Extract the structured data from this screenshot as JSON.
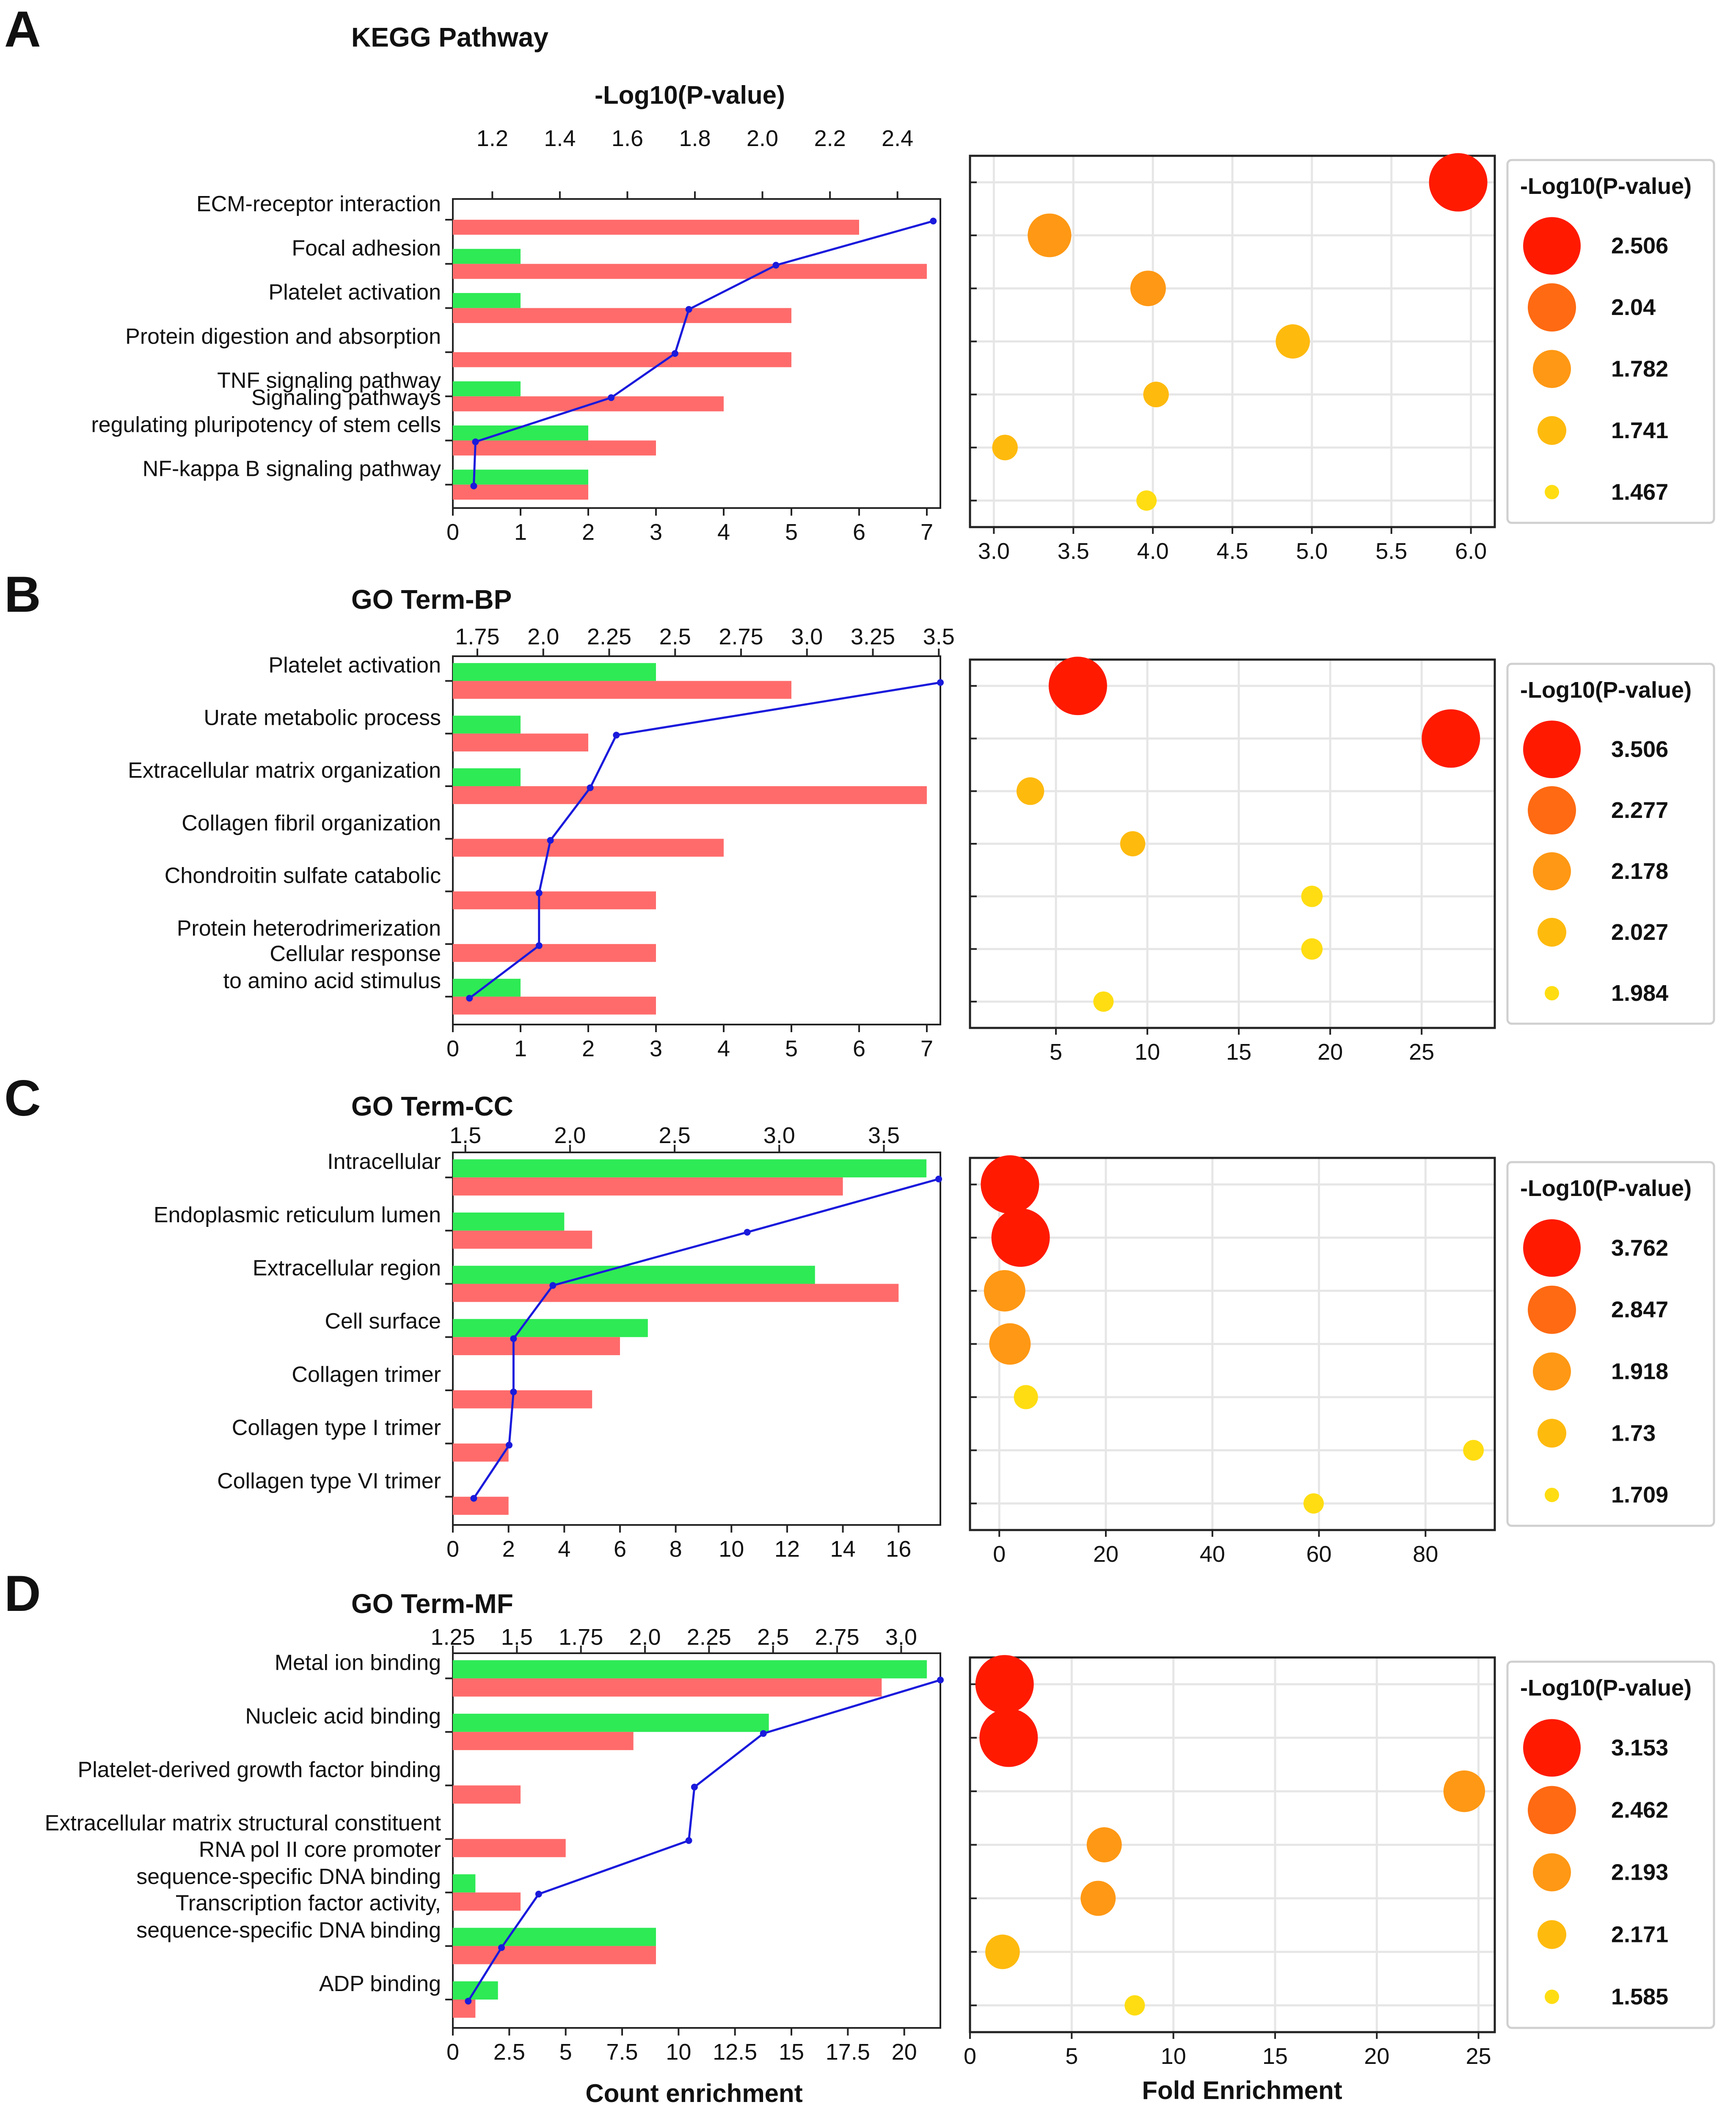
{
  "figure": {
    "x_label_bar": "Count enrichment",
    "x_label_bubble": "Fold Enrichment",
    "colors": {
      "bar_red": "#ff6b6b",
      "bar_green": "#2eea55",
      "line": "#1a1adc",
      "bubble_scale": [
        "#ff1a00",
        "#ff6a12",
        "#ff9814",
        "#ffba0e",
        "#ffdd12"
      ]
    }
  },
  "chart_data": [
    {
      "panel": "A",
      "type": "bar",
      "title": "KEGG Pathway",
      "top_axis_label": "-Log10(P-value)",
      "categories": [
        "ECM-receptor interaction",
        "Focal adhesion",
        "Platelet activation",
        "Protein digestion and absorption",
        "TNF signaling pathway",
        "Signaling pathways\nregulating pluripotency of stem cells",
        "NF-kappa B signaling pathway"
      ],
      "series": [
        {
          "name": "green",
          "values": [
            0,
            1,
            1,
            0,
            1,
            2,
            2
          ]
        },
        {
          "name": "red",
          "values": [
            6,
            7,
            5,
            5,
            4,
            3,
            2
          ]
        }
      ],
      "xlim": [
        0,
        7.2
      ],
      "xticks": [
        0,
        1,
        2,
        3,
        4,
        5,
        6,
        7
      ],
      "xtick_labels": [
        "0",
        "1",
        "2",
        "3",
        "4",
        "5",
        "6",
        "7"
      ],
      "top_xlim": [
        1.083,
        2.527
      ],
      "top_ticks": [
        1.2,
        1.4,
        1.6,
        1.8,
        2.0,
        2.2,
        2.4
      ],
      "top_tick_labels": [
        "1.2",
        "1.4",
        "1.6",
        "1.8",
        "2.0",
        "2.2",
        "2.4"
      ],
      "line": [
        2.506,
        2.04,
        1.782,
        1.741,
        1.552,
        1.15,
        1.145
      ],
      "bubble": {
        "x": [
          5.92,
          3.35,
          3.97,
          4.88,
          4.02,
          3.07,
          3.96
        ],
        "p": [
          2.506,
          2.04,
          1.782,
          1.741,
          1.467,
          1.467,
          1.3
        ],
        "xlim": [
          2.85,
          6.15
        ],
        "xticks": [
          3.0,
          3.5,
          4.0,
          4.5,
          5.0,
          5.5,
          6.0
        ],
        "xtick_labels": [
          "3.0",
          "3.5",
          "4.0",
          "4.5",
          "5.0",
          "5.5",
          "6.0"
        ]
      },
      "legend": {
        "title": "-Log10(P-value)",
        "values": [
          "2.506",
          "2.04",
          "1.782",
          "1.741",
          "1.467"
        ]
      }
    },
    {
      "panel": "B",
      "type": "bar",
      "title": "GO Term-BP",
      "top_axis_label": "",
      "categories": [
        "Platelet activation",
        "Urate metabolic process",
        "Extracellular matrix organization",
        "Collagen fibril organization",
        "Chondroitin sulfate catabolic",
        "Protein heterodrimerization",
        "Cellular response\nto amino acid stimulus"
      ],
      "series": [
        {
          "name": "green",
          "values": [
            3,
            1,
            1,
            0,
            0,
            0,
            1
          ]
        },
        {
          "name": "red",
          "values": [
            5,
            2,
            7,
            4,
            3,
            3,
            3
          ]
        }
      ],
      "xlim": [
        0,
        7.2
      ],
      "xticks": [
        0,
        1,
        2,
        3,
        4,
        5,
        6,
        7
      ],
      "xtick_labels": [
        "0",
        "1",
        "2",
        "3",
        "4",
        "5",
        "6",
        "7"
      ],
      "top_xlim": [
        1.657,
        3.506
      ],
      "top_ticks": [
        1.75,
        2.0,
        2.25,
        2.5,
        2.75,
        3.0,
        3.25,
        3.5
      ],
      "top_tick_labels": [
        "1.75",
        "2.0",
        "2.25",
        "2.5",
        "2.75",
        "3.0",
        "3.25",
        "3.5"
      ],
      "line": [
        3.506,
        2.277,
        2.178,
        2.027,
        1.984,
        1.984,
        1.72
      ],
      "bubble": {
        "x": [
          6.2,
          26.6,
          3.6,
          9.2,
          19.0,
          19.0,
          7.6
        ],
        "p": [
          3.506,
          3.506,
          2.277,
          2.178,
          2.027,
          2.027,
          1.984
        ],
        "xlim": [
          0.3,
          29.0
        ],
        "xticks": [
          5,
          10,
          15,
          20,
          25
        ],
        "xtick_labels": [
          "5",
          "10",
          "15",
          "20",
          "25"
        ]
      },
      "legend": {
        "title": "-Log10(P-value)",
        "values": [
          "3.506",
          "2.277",
          "2.178",
          "2.027",
          "1.984"
        ]
      }
    },
    {
      "panel": "C",
      "type": "bar",
      "title": "GO Term-CC",
      "top_axis_label": "",
      "categories": [
        "Intracellular",
        "Endoplasmic reticulum lumen",
        "Extracellular region",
        "Cell surface",
        "Collagen trimer",
        "Collagen type I trimer",
        "Collagen type VI trimer"
      ],
      "series": [
        {
          "name": "green",
          "values": [
            17,
            4,
            13,
            7,
            0,
            0,
            0
          ]
        },
        {
          "name": "red",
          "values": [
            14,
            5,
            16,
            6,
            5,
            2,
            2
          ]
        }
      ],
      "xlim": [
        0,
        17.5
      ],
      "xticks": [
        0,
        2,
        4,
        6,
        8,
        10,
        12,
        14,
        16
      ],
      "xtick_labels": [
        "0",
        "2",
        "4",
        "6",
        "8",
        "10",
        "12",
        "14",
        "16"
      ],
      "top_xlim": [
        1.44,
        3.77
      ],
      "top_ticks": [
        1.5,
        2.0,
        2.5,
        3.0,
        3.5
      ],
      "top_tick_labels": [
        "1.5",
        "2.0",
        "2.5",
        "3.0",
        "3.5"
      ],
      "line": [
        3.762,
        2.847,
        1.918,
        1.73,
        1.73,
        1.709,
        1.54
      ],
      "bubble": {
        "x": [
          2,
          4,
          1,
          2,
          5,
          89,
          59
        ],
        "p": [
          3.762,
          3.762,
          2.847,
          2.847,
          1.918,
          1.73,
          1.709
        ],
        "xlim": [
          -5.5,
          93
        ],
        "xticks": [
          0,
          20,
          40,
          60,
          80
        ],
        "xtick_labels": [
          "0",
          "20",
          "40",
          "60",
          "80"
        ]
      },
      "legend": {
        "title": "-Log10(P-value)",
        "values": [
          "3.762",
          "2.847",
          "1.918",
          "1.73",
          "1.709"
        ]
      }
    },
    {
      "panel": "D",
      "type": "bar",
      "title": "GO Term-MF",
      "top_axis_label": "",
      "categories": [
        "Metal ion binding",
        "Nucleic acid binding",
        "Platelet-derived growth factor binding",
        "Extracellular matrix structural constituent",
        "RNA pol II core promoter\nsequence-specific DNA binding",
        "Transcription factor activity,\nsequence-specific DNA binding",
        "ADP binding"
      ],
      "series": [
        {
          "name": "green",
          "values": [
            21,
            14,
            0,
            0,
            1,
            9,
            2
          ]
        },
        {
          "name": "red",
          "values": [
            19,
            8,
            3,
            5,
            3,
            9,
            1
          ]
        }
      ],
      "xlim": [
        0,
        21.6
      ],
      "xticks": [
        0,
        2.5,
        5,
        7.5,
        10,
        12.5,
        15,
        17.5,
        20
      ],
      "xtick_labels": [
        "0",
        "2.5",
        "5",
        "7.5",
        "10",
        "12.5",
        "15",
        "17.5",
        "20"
      ],
      "top_xlim": [
        1.25,
        3.153
      ],
      "top_ticks": [
        1.25,
        1.5,
        1.75,
        2.0,
        2.25,
        2.5,
        2.75,
        3.0
      ],
      "top_tick_labels": [
        "1.25",
        "1.5",
        "1.75",
        "2.0",
        "2.25",
        "2.5",
        "2.75",
        "3.0"
      ],
      "line": [
        3.153,
        2.462,
        2.193,
        2.171,
        1.585,
        1.44,
        1.31
      ],
      "bubble": {
        "x": [
          1.7,
          1.9,
          24.3,
          6.6,
          6.3,
          1.6,
          8.1
        ],
        "p": [
          3.153,
          3.153,
          2.462,
          2.193,
          2.193,
          2.171,
          1.585
        ],
        "xlim": [
          0,
          25.8
        ],
        "xticks": [
          0,
          5,
          10,
          15,
          20,
          25
        ],
        "xtick_labels": [
          "0",
          "5",
          "10",
          "15",
          "20",
          "25"
        ]
      },
      "legend": {
        "title": "-Log10(P-value)",
        "values": [
          "3.153",
          "2.462",
          "2.193",
          "2.171",
          "1.585"
        ]
      }
    }
  ]
}
